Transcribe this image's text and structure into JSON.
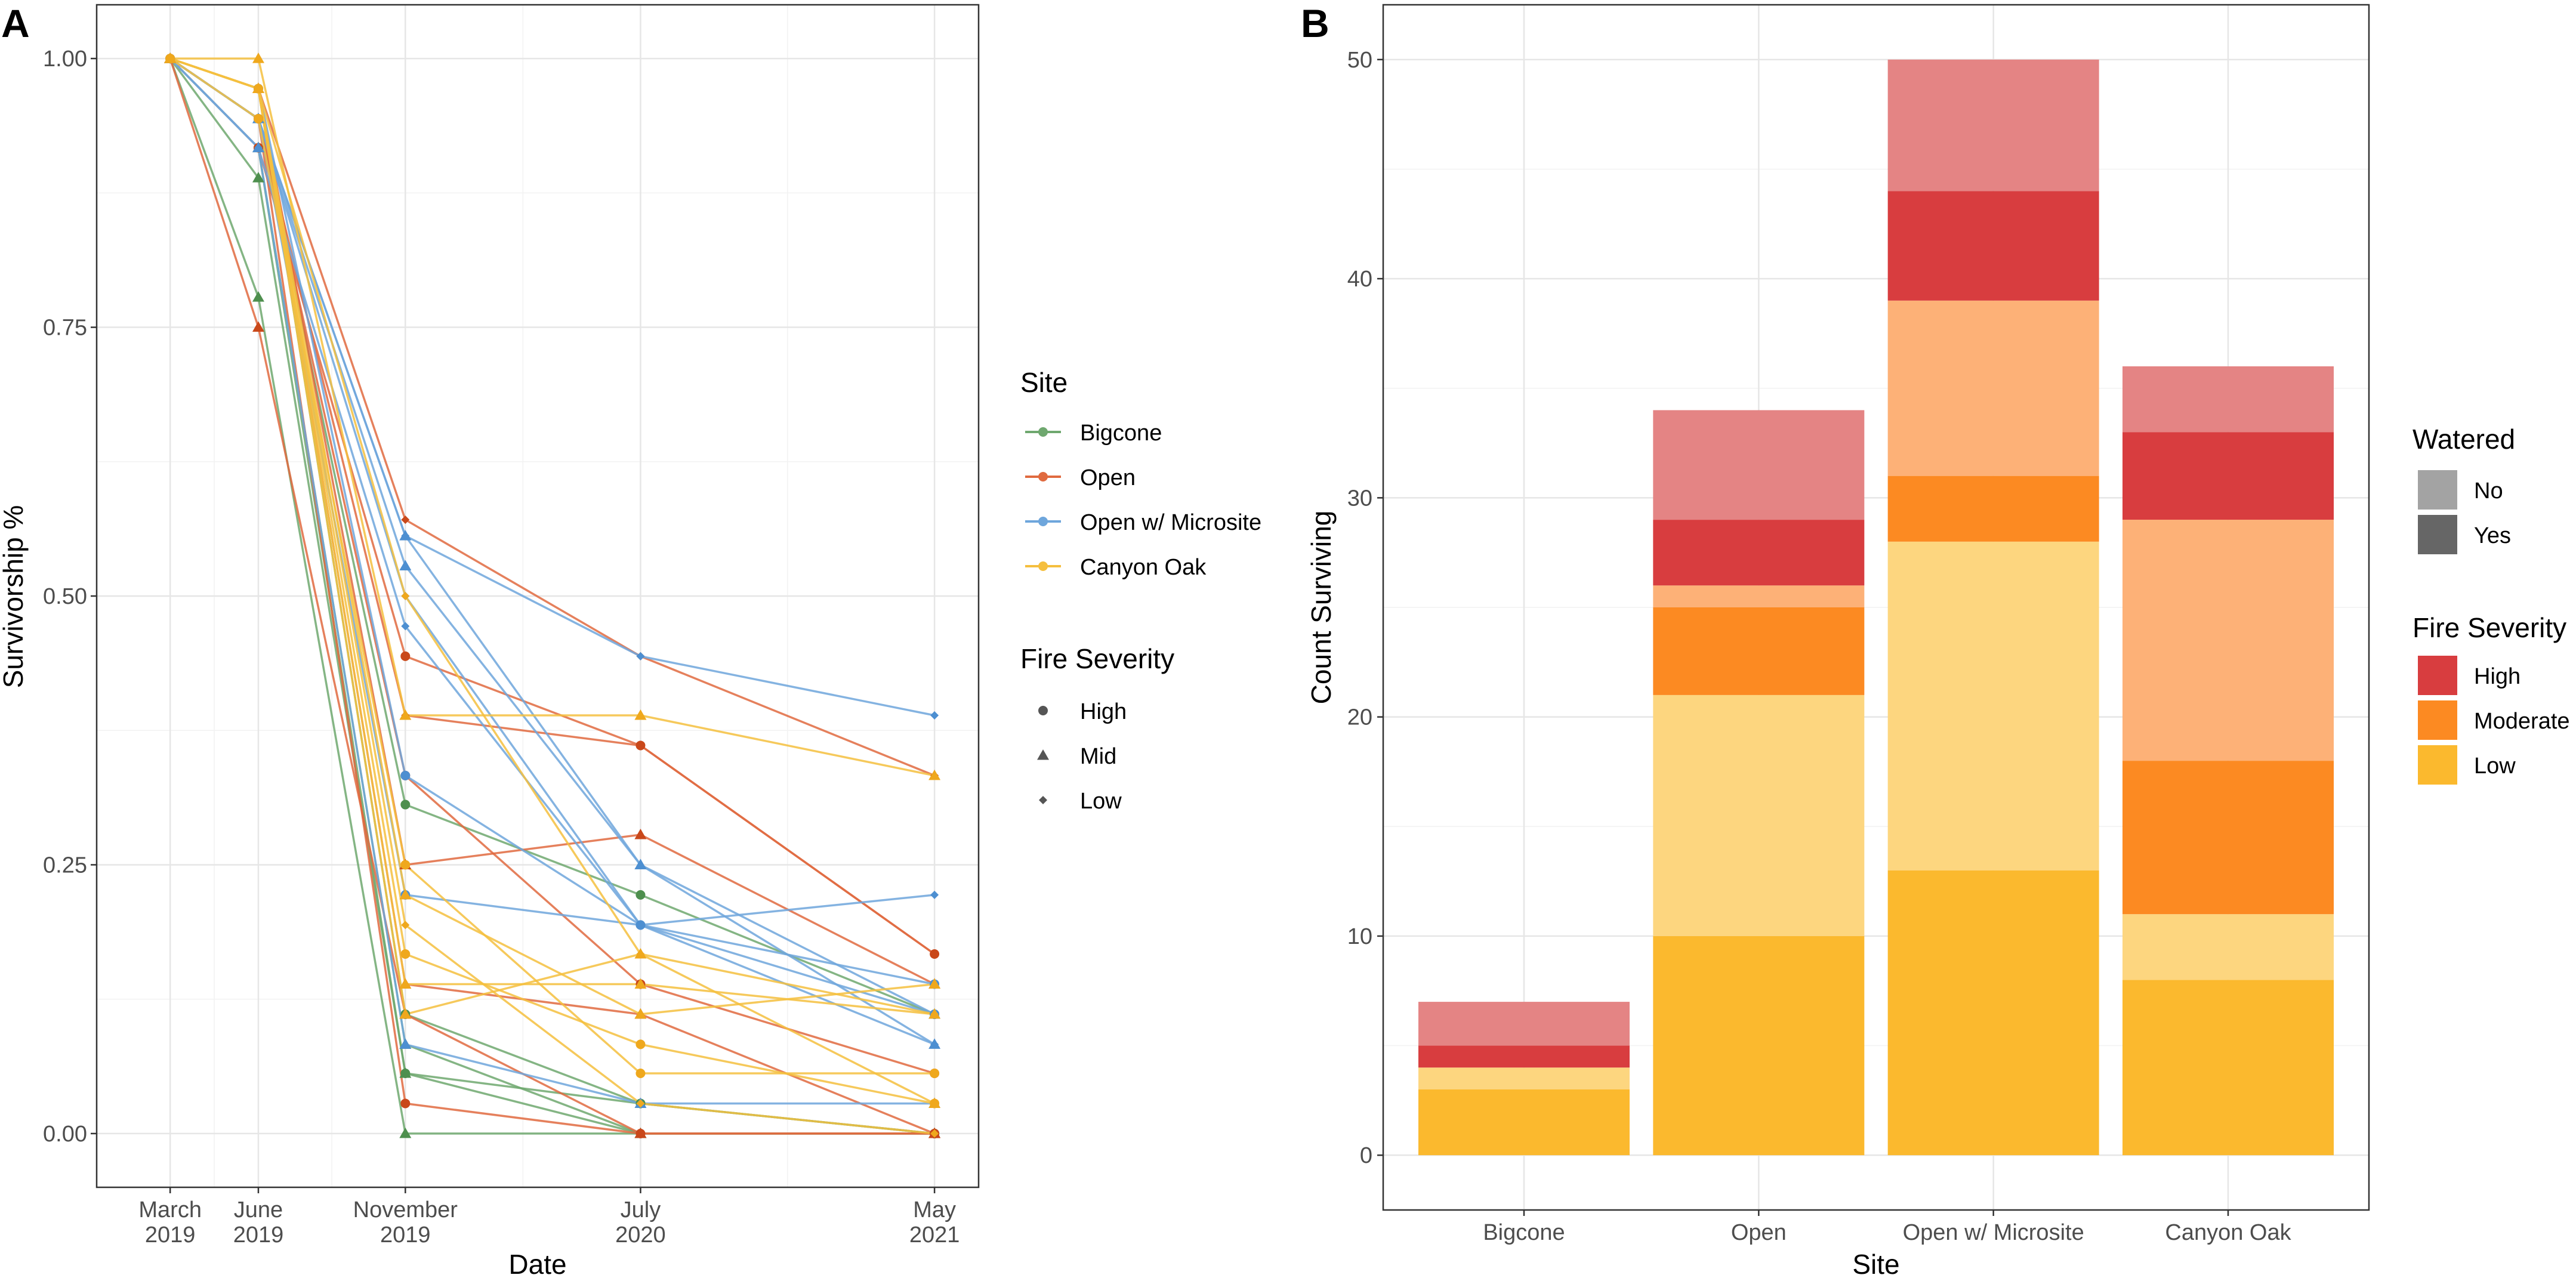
{
  "chart_data": [
    {
      "panel_label": "A",
      "type": "line",
      "xlabel": "Date",
      "ylabel": "Survivorship %",
      "x_ticks": [
        {
          "label": [
            "March",
            "2019"
          ],
          "t": 0
        },
        {
          "label": [
            "June",
            "2019"
          ],
          "t": 3
        },
        {
          "label": [
            "November",
            "2019"
          ],
          "t": 8
        },
        {
          "label": [
            "July",
            "2020"
          ],
          "t": 16
        },
        {
          "label": [
            "May",
            "2021"
          ],
          "t": 26
        }
      ],
      "xlim": [
        -2.5,
        27.5
      ],
      "ylim": [
        -0.05,
        1.05
      ],
      "y_ticks": [
        0,
        0.25,
        0.5,
        0.75,
        1
      ],
      "y_tick_labels": [
        "0.00",
        "0.25",
        "0.50",
        "0.75",
        "1.00"
      ],
      "legend": {
        "site_title": "Site",
        "sites": [
          {
            "name": "Bigcone",
            "color": "#6fa86f"
          },
          {
            "name": "Open",
            "color": "#e06a3f"
          },
          {
            "name": "Open w/ Microsite",
            "color": "#6ea6dc"
          },
          {
            "name": "Canyon Oak",
            "color": "#f5bf3e"
          }
        ],
        "severity_title": "Fire Severity",
        "severities": [
          {
            "name": "High",
            "shape": "circle"
          },
          {
            "name": "Mid",
            "shape": "triangle"
          },
          {
            "name": "Low",
            "shape": "diamond"
          }
        ]
      },
      "series": [
        {
          "site": "Bigcone",
          "severity": "Mid",
          "values": [
            1,
            0.889,
            0.056,
            0,
            0
          ]
        },
        {
          "site": "Bigcone",
          "severity": "Mid",
          "values": [
            1,
            0.778,
            0,
            0,
            0
          ]
        },
        {
          "site": "Bigcone",
          "severity": "High",
          "values": [
            1,
            0.917,
            0.056,
            0.028,
            0
          ]
        },
        {
          "site": "Bigcone",
          "severity": "High",
          "values": [
            1,
            0.944,
            0.306,
            0.222,
            0.111
          ]
        },
        {
          "site": "Bigcone",
          "severity": "Mid",
          "values": [
            1,
            0.917,
            0.083,
            0,
            0
          ]
        },
        {
          "site": "Bigcone",
          "severity": "High",
          "values": [
            1,
            0.972,
            0.111,
            0.028,
            0
          ]
        },
        {
          "site": "Open",
          "severity": "Mid",
          "values": [
            1,
            0.972,
            0.25,
            0.278,
            0.139
          ]
        },
        {
          "site": "Open",
          "severity": "Low",
          "values": [
            1,
            0.944,
            0.389,
            0.361,
            0.167
          ]
        },
        {
          "site": "Open",
          "severity": "Low",
          "values": [
            1,
            0.972,
            0.571,
            0.444,
            0.333
          ]
        },
        {
          "site": "Open",
          "severity": "Mid",
          "values": [
            1,
            0.75,
            0.111,
            0,
            0
          ]
        },
        {
          "site": "Open",
          "severity": "High",
          "values": [
            1,
            0.944,
            0.333,
            0.139,
            0.056
          ]
        },
        {
          "site": "Open",
          "severity": "High",
          "values": [
            1,
            0.917,
            0.444,
            0.361,
            0.167
          ]
        },
        {
          "site": "Open",
          "severity": "Mid",
          "values": [
            1,
            0.972,
            0.139,
            0.111,
            0
          ]
        },
        {
          "site": "Open",
          "severity": "High",
          "values": [
            1,
            0.944,
            0.028,
            0,
            0
          ]
        },
        {
          "site": "Open w/ Microsite",
          "severity": "Low",
          "values": [
            1,
            0.944,
            0.556,
            0.444,
            0.389
          ]
        },
        {
          "site": "Open w/ Microsite",
          "severity": "Mid",
          "values": [
            1,
            0.944,
            0.556,
            0.25,
            0.111
          ]
        },
        {
          "site": "Open w/ Microsite",
          "severity": "Low",
          "values": [
            1,
            0.917,
            0.472,
            0.194,
            0.222
          ]
        },
        {
          "site": "Open w/ Microsite",
          "severity": "Mid",
          "values": [
            1,
            0.944,
            0.528,
            0.25,
            0.083
          ]
        },
        {
          "site": "Open w/ Microsite",
          "severity": "High",
          "values": [
            1,
            0.972,
            0.333,
            0.194,
            0.139
          ]
        },
        {
          "site": "Open w/ Microsite",
          "severity": "Low",
          "values": [
            1,
            0.944,
            0.5,
            0.194,
            0.083
          ]
        },
        {
          "site": "Open w/ Microsite",
          "severity": "High",
          "values": [
            1,
            0.944,
            0.222,
            0.194,
            0.111
          ]
        },
        {
          "site": "Open w/ Microsite",
          "severity": "Mid",
          "values": [
            1,
            0.917,
            0.083,
            0.028,
            0.028
          ]
        },
        {
          "site": "Canyon Oak",
          "severity": "Mid",
          "values": [
            1,
            1,
            0.389,
            0.389,
            0.333
          ]
        },
        {
          "site": "Canyon Oak",
          "severity": "Low",
          "values": [
            1,
            0.972,
            0.5,
            0.167,
            0.111
          ]
        },
        {
          "site": "Canyon Oak",
          "severity": "Mid",
          "values": [
            1,
            0.972,
            0.222,
            0.111,
            0.139
          ]
        },
        {
          "site": "Canyon Oak",
          "severity": "High",
          "values": [
            1,
            0.972,
            0.167,
            0.083,
            0.028
          ]
        },
        {
          "site": "Canyon Oak",
          "severity": "Mid",
          "values": [
            1,
            0.972,
            0.139,
            0.139,
            0.111
          ]
        },
        {
          "site": "Canyon Oak",
          "severity": "High",
          "values": [
            1,
            0.944,
            0.25,
            0.056,
            0.056
          ]
        },
        {
          "site": "Canyon Oak",
          "severity": "Low",
          "values": [
            1,
            0.972,
            0.194,
            0.028,
            0
          ]
        },
        {
          "site": "Canyon Oak",
          "severity": "Mid",
          "values": [
            1,
            0.972,
            0.111,
            0.167,
            0.028
          ]
        }
      ]
    },
    {
      "panel_label": "B",
      "type": "bar",
      "stacked": true,
      "xlabel": "Site",
      "ylabel": "Count Surviving",
      "categories": [
        "Bigcone",
        "Open",
        "Open w/ Microsite",
        "Canyon Oak"
      ],
      "ylim": [
        -2.5,
        52.5
      ],
      "y_ticks": [
        0,
        10,
        20,
        30,
        40,
        50
      ],
      "stack_order": [
        {
          "severity": "Low",
          "watered": "Yes",
          "color": "#fbb92e"
        },
        {
          "severity": "Low",
          "watered": "No",
          "color": "#fdd67f"
        },
        {
          "severity": "Moderate",
          "watered": "Yes",
          "color": "#fc8a22"
        },
        {
          "severity": "Moderate",
          "watered": "No",
          "color": "#fdb177"
        },
        {
          "severity": "High",
          "watered": "Yes",
          "color": "#d83d3f"
        },
        {
          "severity": "High",
          "watered": "No",
          "color": "#e48484"
        }
      ],
      "values": {
        "Bigcone": [
          3,
          1,
          0,
          0,
          1,
          2
        ],
        "Open": [
          10,
          11,
          4,
          1,
          3,
          5
        ],
        "Open w/ Microsite": [
          13,
          15,
          3,
          8,
          5,
          6
        ],
        "Canyon Oak": [
          8,
          3,
          7,
          11,
          4,
          3
        ]
      },
      "legend": {
        "watered_title": "Watered",
        "watered": [
          {
            "name": "No",
            "color": "#a3a3a3"
          },
          {
            "name": "Yes",
            "color": "#666666"
          }
        ],
        "severity_title": "Fire Severity",
        "severities": [
          {
            "name": "High",
            "color": "#d83d3f"
          },
          {
            "name": "Moderate",
            "color": "#fc8a22"
          },
          {
            "name": "Low",
            "color": "#fbb92e"
          }
        ]
      }
    }
  ]
}
